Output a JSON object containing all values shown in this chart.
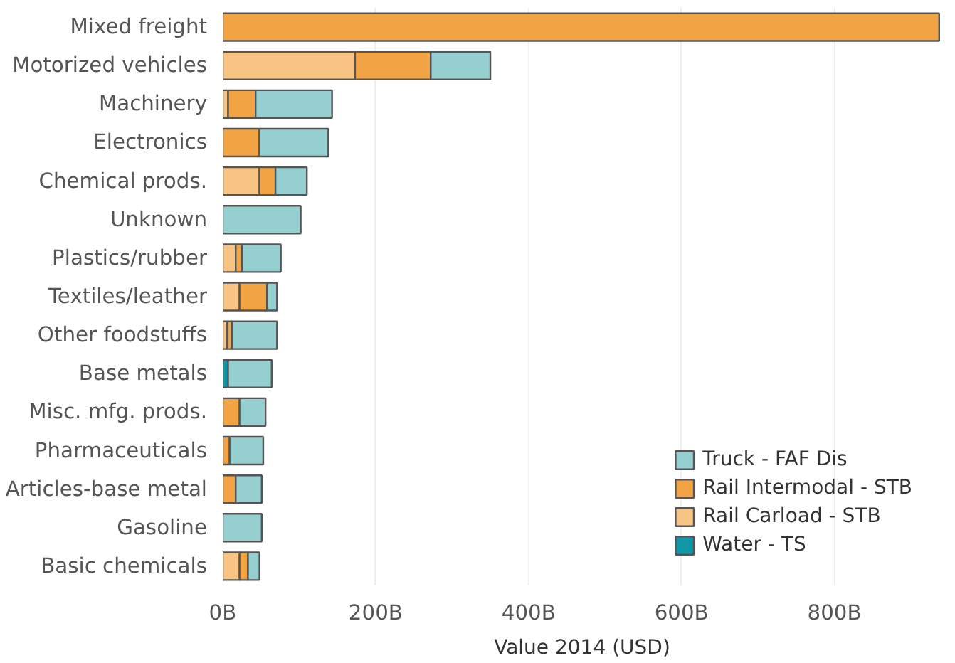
{
  "chart_data": {
    "type": "bar",
    "orientation": "horizontal",
    "stacked": true,
    "xlabel": "Value 2014 (USD)",
    "categories": [
      "Mixed freight",
      "Motorized vehicles",
      "Machinery",
      "Electronics",
      "Chemical prods.",
      "Unknown",
      "Plastics/rubber",
      "Textiles/leather",
      "Other foodstuffs",
      "Base metals",
      "Misc. mfg. prods.",
      "Pharmaceuticals",
      "Articles-base metal",
      "Gasoline",
      "Basic chemicals"
    ],
    "series": [
      {
        "name": "Water - TS",
        "color": "#1198a8",
        "values": [
          null,
          null,
          null,
          null,
          null,
          null,
          null,
          null,
          null,
          7,
          null,
          null,
          null,
          null,
          null
        ]
      },
      {
        "name": "Rail Carload - STB",
        "color": "#f7c483",
        "values": [
          null,
          173,
          7,
          null,
          48,
          null,
          17,
          22,
          6,
          null,
          null,
          null,
          null,
          null,
          22
        ]
      },
      {
        "name": "Rail Intermodal - STB",
        "color": "#f2a444",
        "values": [
          937,
          99,
          36,
          48,
          21,
          null,
          8,
          36,
          6,
          null,
          22,
          9,
          17,
          null,
          11
        ]
      },
      {
        "name": "Truck - FAF Dis",
        "color": "#96cfcf",
        "values": [
          null,
          78,
          100,
          90,
          41,
          102,
          51,
          13,
          59,
          57,
          34,
          44,
          34,
          51,
          15
        ]
      }
    ],
    "xlim": [
      0,
      940
    ],
    "xticks": [
      {
        "value": 0,
        "label": "0B"
      },
      {
        "value": 200,
        "label": "200B"
      },
      {
        "value": 400,
        "label": "400B"
      },
      {
        "value": 600,
        "label": "600B"
      },
      {
        "value": 800,
        "label": "800B"
      }
    ],
    "grid": "x",
    "legend": "bottom right"
  }
}
